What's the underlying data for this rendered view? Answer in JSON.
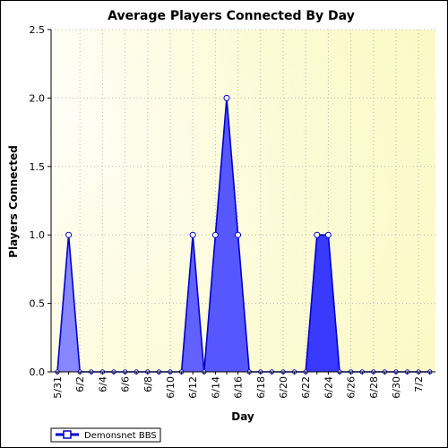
{
  "chart_data": {
    "type": "area",
    "title": "Average Players Connected By Day",
    "xlabel": "Day",
    "ylabel": "Players Connected",
    "ylim": [
      0,
      2.5
    ],
    "yticks": [
      "0.0",
      "0.5",
      "1.0",
      "1.5",
      "2.0",
      "2.5"
    ],
    "xticks": [
      "5/31",
      "6/2",
      "6/4",
      "6/6",
      "6/8",
      "6/10",
      "6/12",
      "6/14",
      "6/16",
      "6/18",
      "6/20",
      "6/22",
      "6/24",
      "6/26",
      "6/28",
      "6/30",
      "7/2"
    ],
    "x": [
      "5/31",
      "6/1",
      "6/2",
      "6/3",
      "6/4",
      "6/5",
      "6/6",
      "6/7",
      "6/8",
      "6/9",
      "6/10",
      "6/11",
      "6/12",
      "6/13",
      "6/14",
      "6/15",
      "6/16",
      "6/17",
      "6/18",
      "6/19",
      "6/20",
      "6/21",
      "6/22",
      "6/23",
      "6/24",
      "6/25",
      "6/26",
      "6/27",
      "6/28",
      "6/29",
      "6/30",
      "7/1",
      "7/2",
      "7/3"
    ],
    "series": [
      {
        "name": "Demonsnet BBS",
        "values": [
          0,
          1,
          0,
          0,
          0,
          0,
          0,
          0,
          0,
          0,
          0,
          0,
          1,
          0,
          1,
          2,
          1,
          0,
          0,
          0,
          0,
          0,
          0,
          1,
          1,
          0,
          0,
          0,
          0,
          0,
          0,
          0,
          0,
          0
        ]
      }
    ],
    "grid": true,
    "legend_position": "bottom-left",
    "colors": {
      "line": "#0000cc",
      "fill_light": "#8a8aff",
      "fill_dark": "#1a1aff",
      "plot_bg_light": "#fbf9c4",
      "plot_bg_white": "#ffffff",
      "marker_fill": "#ffffff"
    }
  }
}
